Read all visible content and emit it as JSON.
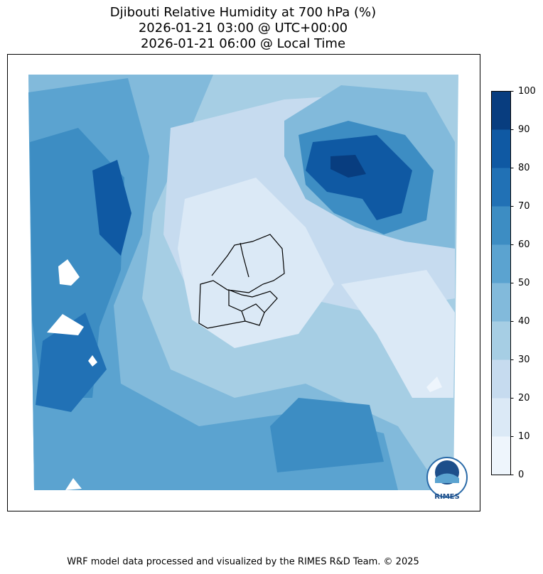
{
  "title": [
    "Djibouti Relative Humidity at 700 hPa (%)",
    "2026-01-21 03:00 @ UTC+00:00",
    "2026-01-21 06:00 @ Local Time"
  ],
  "colorbar": {
    "levels": [
      0,
      10,
      20,
      30,
      40,
      50,
      60,
      70,
      80,
      90,
      100
    ],
    "colors": [
      "#eef5fc",
      "#dbe9f6",
      "#c6dbef",
      "#a6cee4",
      "#82badb",
      "#5ba3d0",
      "#3d8dc3",
      "#2171b5",
      "#0f59a3",
      "#083d7f"
    ]
  },
  "logo": "RIMES",
  "footer": "WRF model data processed and visualized by the RIMES R&D Team. © 2025"
}
